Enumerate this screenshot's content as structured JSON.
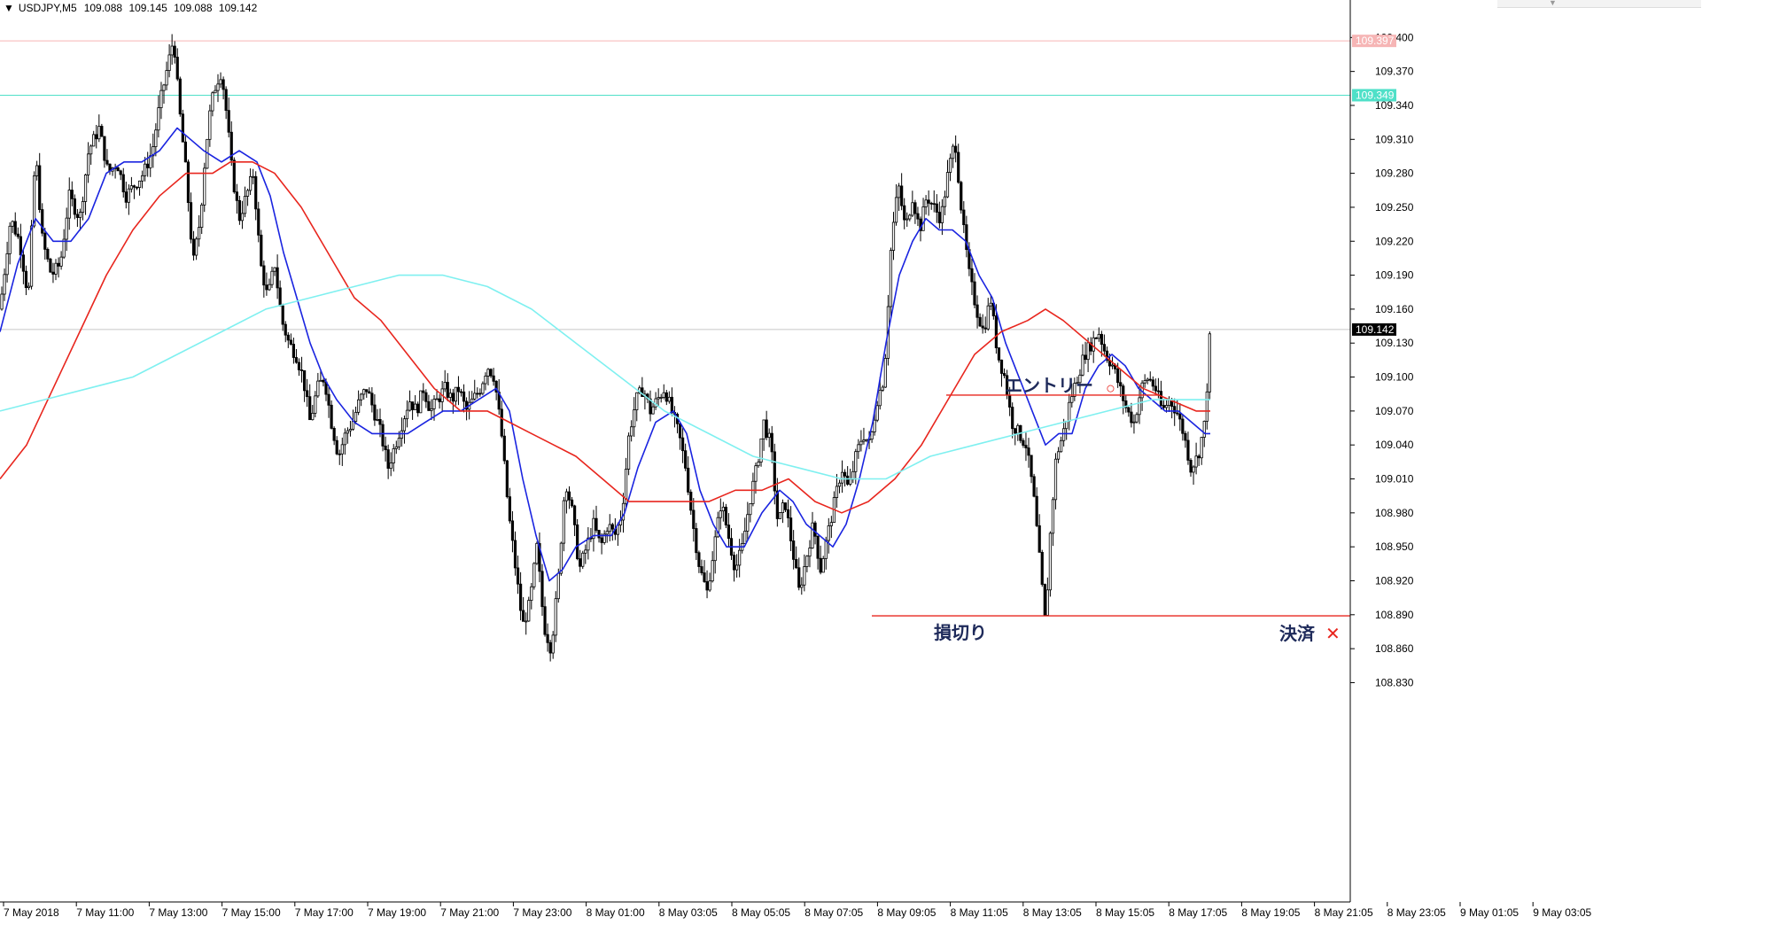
{
  "header": {
    "symbol": "USDJPY,M5",
    "open": "109.088",
    "high": "109.145",
    "low": "109.088",
    "close": "109.142"
  },
  "colors": {
    "background": "#ffffff",
    "axis": "#000000",
    "candle": "#000000",
    "ma_fast": "#1a24e0",
    "ma_mid": "#e8261e",
    "ma_slow": "#7ff0f0",
    "level_pink": "#f6b5b5",
    "level_cyan": "#4fe0c8",
    "annotation_line": "#e8261e",
    "annotation_text": "#1e2a5a"
  },
  "current_price": "109.142",
  "level_labels": [
    {
      "name": "level-pink",
      "value": 109.397,
      "text": "109.397"
    },
    {
      "name": "level-cyan",
      "value": 109.349,
      "text": "109.349"
    }
  ],
  "annotations": {
    "entry": {
      "label": "エントリー",
      "marker": "○",
      "price": 109.084
    },
    "stop": {
      "label": "損切り",
      "price": 108.889
    },
    "exit": {
      "label": "決済",
      "marker": "✕",
      "price": 108.879
    }
  },
  "chart_data": {
    "type": "line",
    "title": "USDJPY,M5",
    "xlabel": "",
    "ylabel": "",
    "ylim": [
      108.81,
      109.43
    ],
    "grid": false,
    "y_ticks": [
      "109.400",
      "109.370",
      "109.340",
      "109.310",
      "109.280",
      "109.250",
      "109.220",
      "109.190",
      "109.160",
      "109.130",
      "109.100",
      "109.070",
      "109.040",
      "109.010",
      "108.980",
      "108.950",
      "108.920",
      "108.890",
      "108.860",
      "108.830"
    ],
    "x_ticks": [
      "7 May 2018",
      "7 May 11:00",
      "7 May 13:00",
      "7 May 15:00",
      "7 May 17:00",
      "7 May 19:00",
      "7 May 21:00",
      "7 May 23:00",
      "8 May 01:00",
      "8 May 03:05",
      "8 May 05:05",
      "8 May 07:05",
      "8 May 09:05",
      "8 May 11:05",
      "8 May 13:05",
      "8 May 15:05",
      "8 May 17:05",
      "8 May 19:05",
      "8 May 21:05",
      "8 May 23:05",
      "9 May 01:05",
      "9 May 03:05"
    ],
    "price_path": [
      [
        0,
        109.16
      ],
      [
        12,
        109.24
      ],
      [
        22,
        109.22
      ],
      [
        32,
        109.17
      ],
      [
        40,
        109.3
      ],
      [
        48,
        109.22
      ],
      [
        58,
        109.19
      ],
      [
        68,
        109.2
      ],
      [
        78,
        109.26
      ],
      [
        90,
        109.24
      ],
      [
        100,
        109.3
      ],
      [
        112,
        109.32
      ],
      [
        122,
        109.28
      ],
      [
        132,
        109.29
      ],
      [
        142,
        109.26
      ],
      [
        152,
        109.27
      ],
      [
        162,
        109.28
      ],
      [
        172,
        109.3
      ],
      [
        180,
        109.34
      ],
      [
        188,
        109.37
      ],
      [
        196,
        109.4
      ],
      [
        202,
        109.34
      ],
      [
        210,
        109.28
      ],
      [
        218,
        109.2
      ],
      [
        226,
        109.24
      ],
      [
        232,
        109.3
      ],
      [
        238,
        109.34
      ],
      [
        244,
        109.36
      ],
      [
        250,
        109.37
      ],
      [
        256,
        109.33
      ],
      [
        262,
        109.28
      ],
      [
        270,
        109.24
      ],
      [
        278,
        109.26
      ],
      [
        286,
        109.28
      ],
      [
        294,
        109.2
      ],
      [
        302,
        109.17
      ],
      [
        310,
        109.2
      ],
      [
        318,
        109.15
      ],
      [
        326,
        109.13
      ],
      [
        334,
        109.12
      ],
      [
        342,
        109.1
      ],
      [
        350,
        109.06
      ],
      [
        358,
        109.09
      ],
      [
        366,
        109.1
      ],
      [
        374,
        109.06
      ],
      [
        382,
        109.03
      ],
      [
        390,
        109.05
      ],
      [
        398,
        109.06
      ],
      [
        406,
        109.08
      ],
      [
        414,
        109.09
      ],
      [
        422,
        109.07
      ],
      [
        430,
        109.05
      ],
      [
        438,
        109.02
      ],
      [
        446,
        109.04
      ],
      [
        454,
        109.06
      ],
      [
        462,
        109.08
      ],
      [
        470,
        109.07
      ],
      [
        478,
        109.09
      ],
      [
        486,
        109.07
      ],
      [
        494,
        109.08
      ],
      [
        502,
        109.09
      ],
      [
        510,
        109.08
      ],
      [
        518,
        109.09
      ],
      [
        526,
        109.07
      ],
      [
        534,
        109.08
      ],
      [
        542,
        109.09
      ],
      [
        550,
        109.11
      ],
      [
        558,
        109.1
      ],
      [
        566,
        109.05
      ],
      [
        574,
        108.98
      ],
      [
        582,
        108.93
      ],
      [
        590,
        108.88
      ],
      [
        598,
        108.9
      ],
      [
        606,
        108.95
      ],
      [
        614,
        108.88
      ],
      [
        622,
        108.86
      ],
      [
        630,
        108.92
      ],
      [
        638,
        109.01
      ],
      [
        646,
        108.98
      ],
      [
        654,
        108.93
      ],
      [
        662,
        108.95
      ],
      [
        670,
        108.97
      ],
      [
        678,
        108.95
      ],
      [
        686,
        108.97
      ],
      [
        694,
        108.96
      ],
      [
        702,
        108.98
      ],
      [
        710,
        109.05
      ],
      [
        718,
        109.08
      ],
      [
        726,
        109.09
      ],
      [
        734,
        109.07
      ],
      [
        742,
        109.08
      ],
      [
        750,
        109.09
      ],
      [
        758,
        109.07
      ],
      [
        766,
        109.05
      ],
      [
        774,
        109.02
      ],
      [
        782,
        108.97
      ],
      [
        790,
        108.93
      ],
      [
        798,
        108.91
      ],
      [
        806,
        108.95
      ],
      [
        814,
        108.99
      ],
      [
        822,
        108.96
      ],
      [
        830,
        108.93
      ],
      [
        838,
        108.95
      ],
      [
        846,
        108.99
      ],
      [
        854,
        109.02
      ],
      [
        862,
        109.06
      ],
      [
        870,
        109.04
      ],
      [
        878,
        108.97
      ],
      [
        886,
        108.99
      ],
      [
        894,
        108.95
      ],
      [
        902,
        108.91
      ],
      [
        910,
        108.94
      ],
      [
        918,
        108.97
      ],
      [
        926,
        108.93
      ],
      [
        934,
        108.96
      ],
      [
        942,
        108.99
      ],
      [
        950,
        109.02
      ],
      [
        958,
        109.0
      ],
      [
        966,
        109.03
      ],
      [
        974,
        109.05
      ],
      [
        982,
        109.04
      ],
      [
        990,
        109.08
      ],
      [
        998,
        109.1
      ],
      [
        1006,
        109.22
      ],
      [
        1014,
        109.27
      ],
      [
        1022,
        109.23
      ],
      [
        1030,
        109.26
      ],
      [
        1038,
        109.23
      ],
      [
        1046,
        109.26
      ],
      [
        1054,
        109.25
      ],
      [
        1062,
        109.24
      ],
      [
        1070,
        109.28
      ],
      [
        1078,
        109.31
      ],
      [
        1086,
        109.24
      ],
      [
        1094,
        109.19
      ],
      [
        1102,
        109.16
      ],
      [
        1110,
        109.14
      ],
      [
        1118,
        109.17
      ],
      [
        1126,
        109.12
      ],
      [
        1134,
        109.1
      ],
      [
        1142,
        109.06
      ],
      [
        1150,
        109.05
      ],
      [
        1158,
        109.04
      ],
      [
        1166,
        109.0
      ],
      [
        1172,
        108.95
      ],
      [
        1180,
        108.88
      ],
      [
        1186,
        108.97
      ],
      [
        1192,
        109.03
      ],
      [
        1200,
        109.05
      ],
      [
        1208,
        109.08
      ],
      [
        1216,
        109.1
      ],
      [
        1224,
        109.12
      ],
      [
        1232,
        109.13
      ],
      [
        1240,
        109.14
      ],
      [
        1248,
        109.12
      ],
      [
        1256,
        109.11
      ],
      [
        1264,
        109.09
      ],
      [
        1272,
        109.07
      ],
      [
        1280,
        109.06
      ],
      [
        1288,
        109.09
      ],
      [
        1296,
        109.1
      ],
      [
        1304,
        109.09
      ],
      [
        1312,
        109.07
      ],
      [
        1320,
        109.08
      ],
      [
        1328,
        109.07
      ],
      [
        1336,
        109.05
      ],
      [
        1344,
        109.02
      ],
      [
        1352,
        109.03
      ],
      [
        1360,
        109.06
      ],
      [
        1366,
        109.142
      ]
    ],
    "series": [
      {
        "color": "#1a24e0",
        "values": [
          [
            0,
            109.14
          ],
          [
            20,
            109.2
          ],
          [
            40,
            109.24
          ],
          [
            60,
            109.22
          ],
          [
            80,
            109.22
          ],
          [
            100,
            109.24
          ],
          [
            120,
            109.28
          ],
          [
            140,
            109.29
          ],
          [
            160,
            109.29
          ],
          [
            180,
            109.3
          ],
          [
            200,
            109.32
          ],
          [
            215,
            109.31
          ],
          [
            230,
            109.3
          ],
          [
            250,
            109.29
          ],
          [
            270,
            109.3
          ],
          [
            290,
            109.29
          ],
          [
            305,
            109.26
          ],
          [
            320,
            109.21
          ],
          [
            335,
            109.17
          ],
          [
            350,
            109.13
          ],
          [
            365,
            109.1
          ],
          [
            380,
            109.08
          ],
          [
            400,
            109.06
          ],
          [
            420,
            109.05
          ],
          [
            440,
            109.05
          ],
          [
            460,
            109.05
          ],
          [
            480,
            109.06
          ],
          [
            500,
            109.07
          ],
          [
            520,
            109.07
          ],
          [
            540,
            109.08
          ],
          [
            560,
            109.09
          ],
          [
            575,
            109.07
          ],
          [
            590,
            109.01
          ],
          [
            605,
            108.96
          ],
          [
            620,
            108.92
          ],
          [
            635,
            108.93
          ],
          [
            650,
            108.95
          ],
          [
            670,
            108.96
          ],
          [
            690,
            108.96
          ],
          [
            705,
            108.98
          ],
          [
            720,
            109.02
          ],
          [
            740,
            109.06
          ],
          [
            760,
            109.07
          ],
          [
            775,
            109.05
          ],
          [
            790,
            109.0
          ],
          [
            805,
            108.97
          ],
          [
            820,
            108.95
          ],
          [
            840,
            108.95
          ],
          [
            860,
            108.98
          ],
          [
            880,
            109.0
          ],
          [
            895,
            108.99
          ],
          [
            910,
            108.97
          ],
          [
            925,
            108.96
          ],
          [
            940,
            108.95
          ],
          [
            955,
            108.97
          ],
          [
            970,
            109.01
          ],
          [
            985,
            109.06
          ],
          [
            1000,
            109.13
          ],
          [
            1015,
            109.19
          ],
          [
            1030,
            109.22
          ],
          [
            1045,
            109.24
          ],
          [
            1060,
            109.23
          ],
          [
            1075,
            109.23
          ],
          [
            1090,
            109.22
          ],
          [
            1105,
            109.19
          ],
          [
            1120,
            109.17
          ],
          [
            1135,
            109.13
          ],
          [
            1150,
            109.1
          ],
          [
            1165,
            109.07
          ],
          [
            1180,
            109.04
          ],
          [
            1195,
            109.05
          ],
          [
            1210,
            109.05
          ],
          [
            1225,
            109.09
          ],
          [
            1240,
            109.11
          ],
          [
            1255,
            109.12
          ],
          [
            1270,
            109.11
          ],
          [
            1285,
            109.09
          ],
          [
            1300,
            109.08
          ],
          [
            1315,
            109.07
          ],
          [
            1330,
            109.07
          ],
          [
            1345,
            109.06
          ],
          [
            1360,
            109.05
          ],
          [
            1366,
            109.05
          ]
        ]
      },
      {
        "color": "#e8261e",
        "values": [
          [
            0,
            109.01
          ],
          [
            30,
            109.04
          ],
          [
            60,
            109.09
          ],
          [
            90,
            109.14
          ],
          [
            120,
            109.19
          ],
          [
            150,
            109.23
          ],
          [
            180,
            109.26
          ],
          [
            210,
            109.28
          ],
          [
            240,
            109.28
          ],
          [
            260,
            109.29
          ],
          [
            285,
            109.29
          ],
          [
            310,
            109.28
          ],
          [
            340,
            109.25
          ],
          [
            370,
            109.21
          ],
          [
            400,
            109.17
          ],
          [
            430,
            109.15
          ],
          [
            460,
            109.12
          ],
          [
            490,
            109.09
          ],
          [
            520,
            109.07
          ],
          [
            550,
            109.07
          ],
          [
            575,
            109.06
          ],
          [
            600,
            109.05
          ],
          [
            625,
            109.04
          ],
          [
            650,
            109.03
          ],
          [
            680,
            109.01
          ],
          [
            710,
            108.99
          ],
          [
            740,
            108.99
          ],
          [
            770,
            108.99
          ],
          [
            800,
            108.99
          ],
          [
            830,
            109.0
          ],
          [
            860,
            109.0
          ],
          [
            890,
            109.01
          ],
          [
            920,
            108.99
          ],
          [
            950,
            108.98
          ],
          [
            980,
            108.99
          ],
          [
            1010,
            109.01
          ],
          [
            1040,
            109.04
          ],
          [
            1070,
            109.08
          ],
          [
            1100,
            109.12
          ],
          [
            1130,
            109.14
          ],
          [
            1160,
            109.15
          ],
          [
            1180,
            109.16
          ],
          [
            1200,
            109.15
          ],
          [
            1230,
            109.13
          ],
          [
            1260,
            109.11
          ],
          [
            1290,
            109.09
          ],
          [
            1320,
            109.08
          ],
          [
            1350,
            109.07
          ],
          [
            1366,
            109.07
          ]
        ]
      },
      {
        "color": "#7ff0f0",
        "values": [
          [
            0,
            109.07
          ],
          [
            50,
            109.08
          ],
          [
            100,
            109.09
          ],
          [
            150,
            109.1
          ],
          [
            200,
            109.12
          ],
          [
            250,
            109.14
          ],
          [
            300,
            109.16
          ],
          [
            350,
            109.17
          ],
          [
            400,
            109.18
          ],
          [
            450,
            109.19
          ],
          [
            500,
            109.19
          ],
          [
            550,
            109.18
          ],
          [
            600,
            109.16
          ],
          [
            650,
            109.13
          ],
          [
            700,
            109.1
          ],
          [
            750,
            109.07
          ],
          [
            800,
            109.05
          ],
          [
            850,
            109.03
          ],
          [
            900,
            109.02
          ],
          [
            950,
            109.01
          ],
          [
            1000,
            109.01
          ],
          [
            1050,
            109.03
          ],
          [
            1100,
            109.04
          ],
          [
            1150,
            109.05
          ],
          [
            1200,
            109.06
          ],
          [
            1250,
            109.07
          ],
          [
            1300,
            109.08
          ],
          [
            1366,
            109.08
          ]
        ]
      }
    ]
  }
}
